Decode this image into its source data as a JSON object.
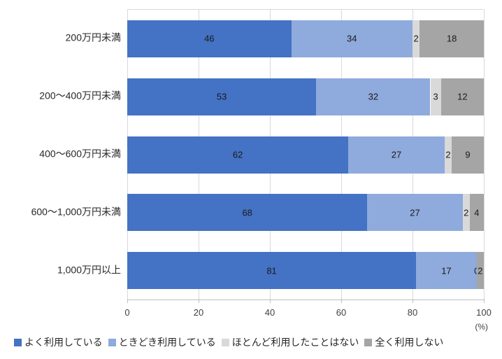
{
  "chart_data": {
    "type": "bar",
    "orientation": "horizontal",
    "stacked": true,
    "title": "",
    "categories": [
      "200万円未満",
      "200～400万円未満",
      "400～600万円未満",
      "600～1,000万円未満",
      "1,000万円以上"
    ],
    "series": [
      {
        "name": "よく利用している",
        "color": "#4472C4",
        "values": [
          46,
          53,
          62,
          68,
          81
        ]
      },
      {
        "name": "ときどき利用している",
        "color": "#8FAADC",
        "values": [
          34,
          32,
          27,
          27,
          17
        ]
      },
      {
        "name": "ほとんど利用したことはない",
        "color": "#D9D9D9",
        "values": [
          2,
          3,
          2,
          2,
          0
        ]
      },
      {
        "name": "全く利用しない",
        "color": "#A5A5A5",
        "values": [
          18,
          12,
          9,
          4,
          2
        ]
      }
    ],
    "x_ticks": [
      0,
      20,
      40,
      60,
      80,
      100
    ],
    "xlim": [
      0,
      100
    ],
    "x_unit_label": "(%)",
    "grid": true,
    "legend_position": "bottom",
    "data_labels": true
  }
}
